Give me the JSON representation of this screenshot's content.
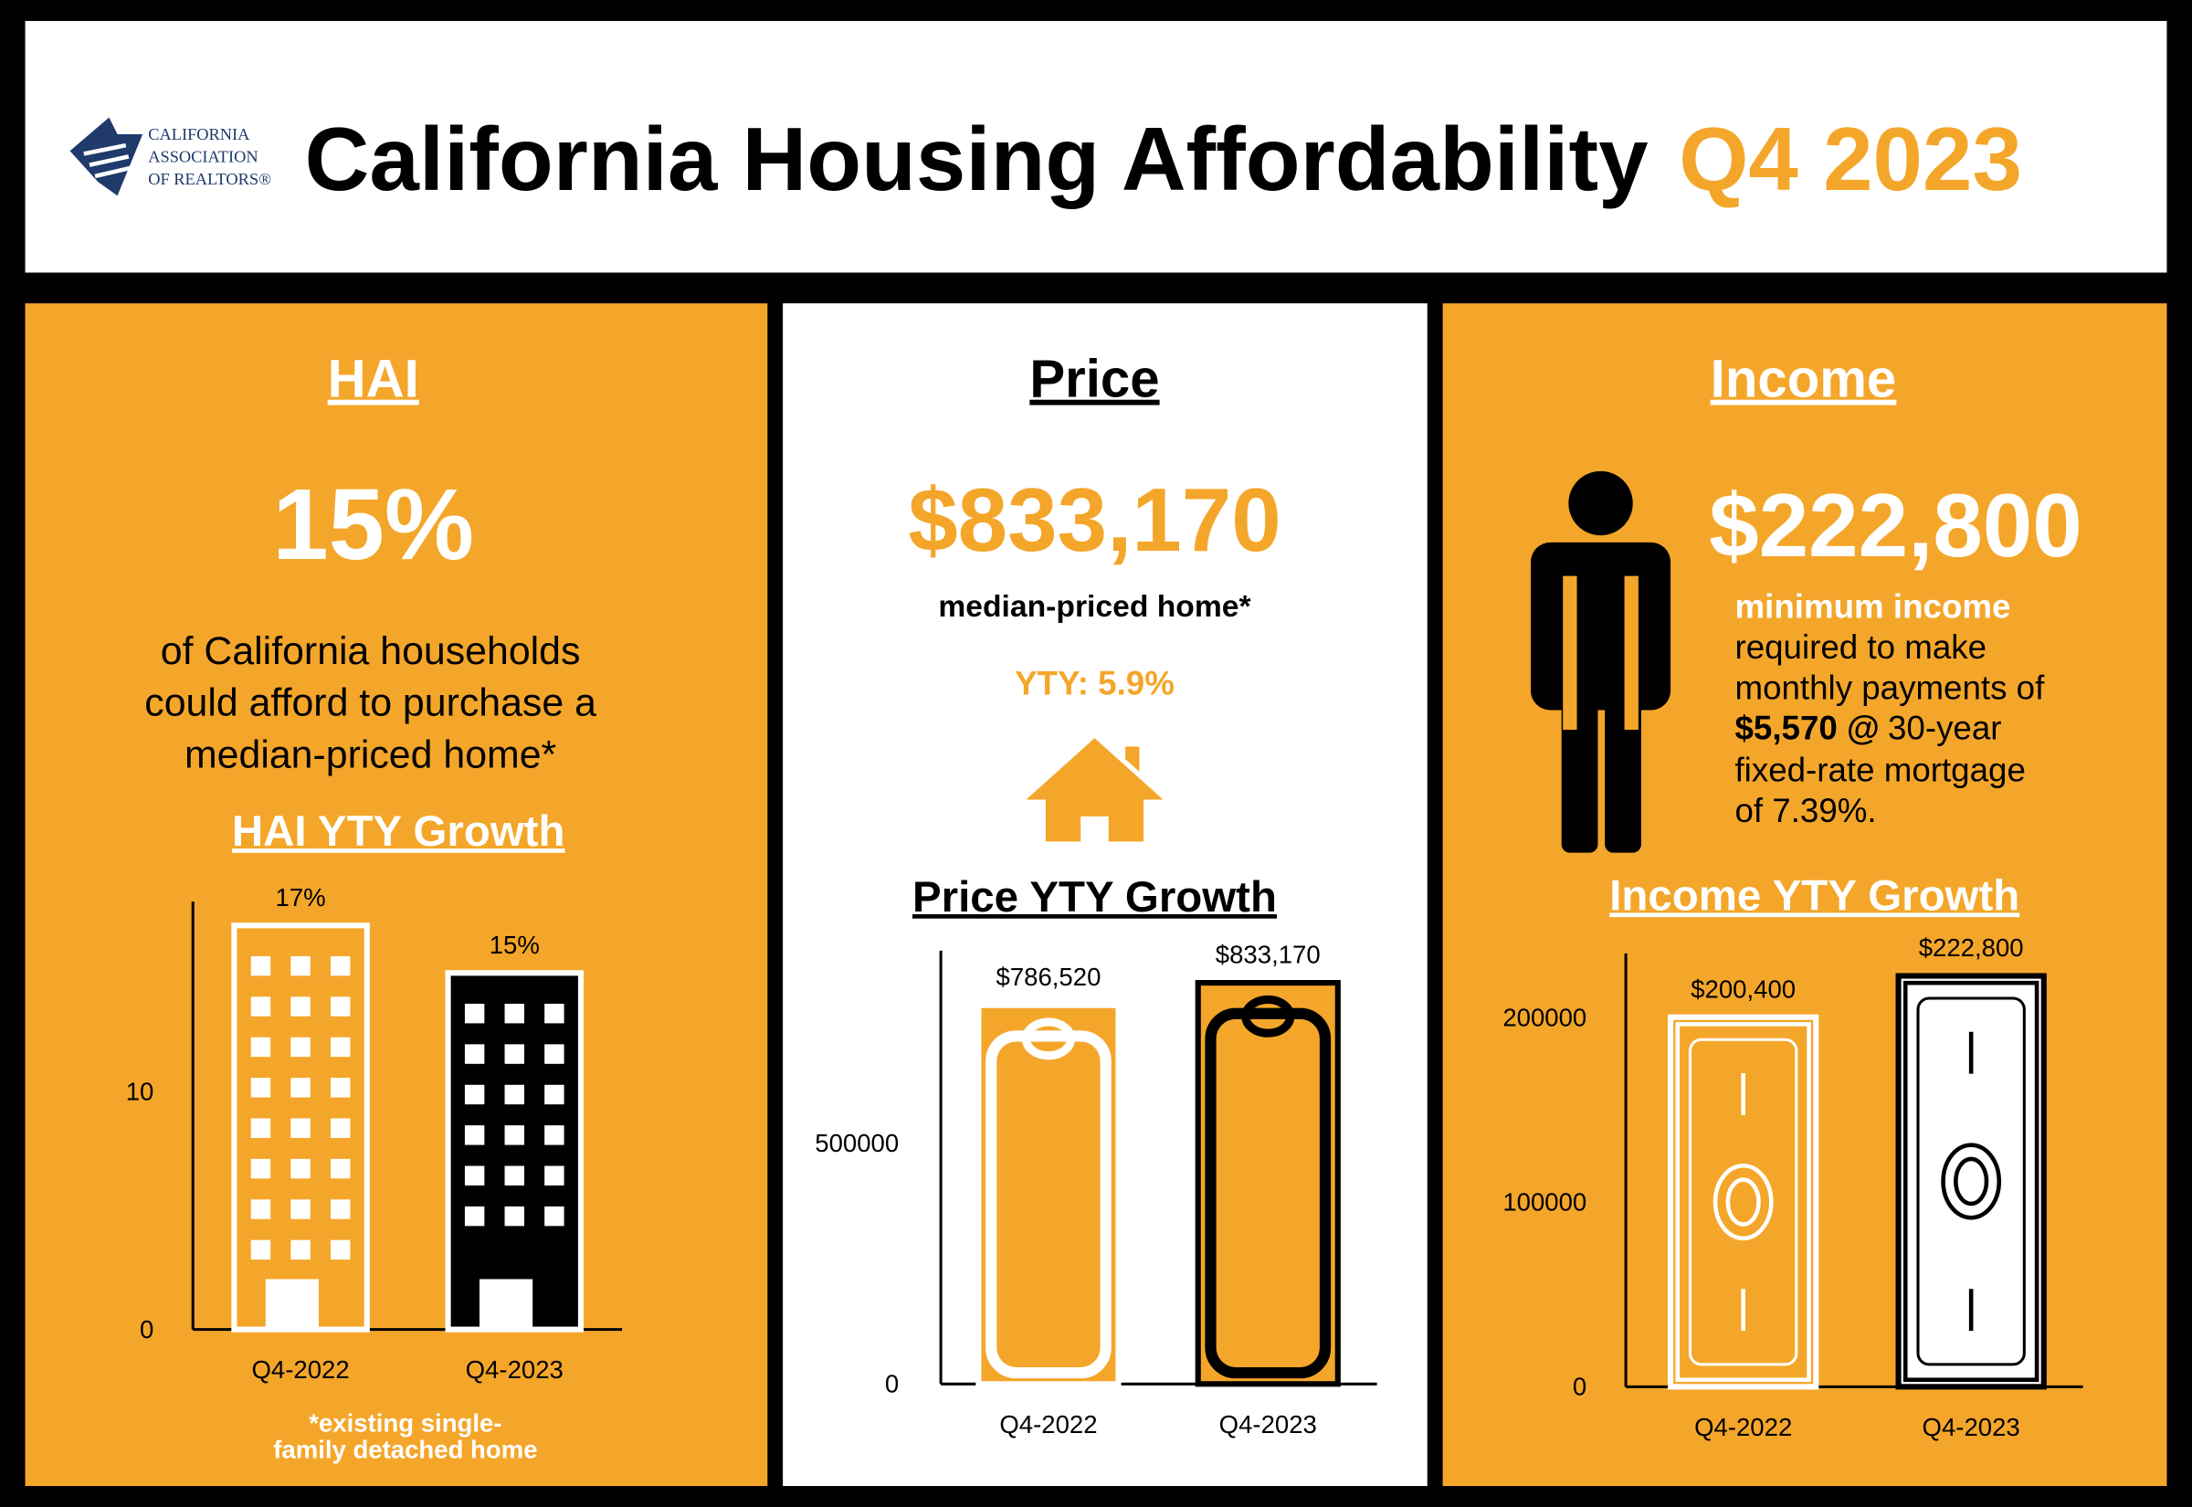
{
  "header": {
    "logo": [
      "CALIFORNIA",
      "ASSOCIATION",
      "OF REALTORS®"
    ],
    "title": "California Housing Affordability",
    "period": "Q4 2023"
  },
  "panels": {
    "hai": {
      "heading": "HAI",
      "big": "15%",
      "description": [
        "of California households",
        "could afford to purchase a",
        "median-priced home*"
      ],
      "footnote": [
        "*existing single-",
        "family detached home"
      ]
    },
    "price": {
      "heading": "Price",
      "big": "$833,170",
      "caption": "median-priced home*",
      "yty": "YTY: 5.9%"
    },
    "income": {
      "heading": "Income",
      "big": "$222,800",
      "description": [
        "minimum income",
        "required to make",
        "monthly payments of",
        [
          "$5,570 @",
          "30-year"
        ],
        "fixed-rate mortgage",
        "of 7.39%."
      ]
    }
  },
  "chart_data": [
    {
      "type": "bar",
      "icon": "building",
      "title": "HAI YTY Growth",
      "categories": [
        "Q4-2022",
        "Q4-2023"
      ],
      "values": [
        17,
        15
      ],
      "value_labels": [
        "17%",
        "15%"
      ],
      "colors": [
        "#f4a62a",
        "#000000"
      ],
      "detail_colors": [
        "#ffffff",
        "#ffffff"
      ],
      "ylim": [
        0,
        18
      ],
      "yticks": [
        0,
        10
      ]
    },
    {
      "type": "bar",
      "icon": "tag",
      "title": "Price YTY Growth",
      "categories": [
        "Q4-2022",
        "Q4-2023"
      ],
      "values": [
        786520,
        833170
      ],
      "value_labels": [
        "$786,520",
        "$833,170"
      ],
      "colors": [
        "#f4a62a",
        "#f4a62a"
      ],
      "detail_colors": [
        "#ffffff",
        "#000000"
      ],
      "ylim": [
        0,
        900000
      ],
      "yticks": [
        0,
        500000
      ]
    },
    {
      "type": "bar",
      "icon": "bill",
      "title": "Income YTY Growth",
      "categories": [
        "Q4-2022",
        "Q4-2023"
      ],
      "values": [
        200400,
        222800
      ],
      "value_labels": [
        "$200,400",
        "$222,800"
      ],
      "colors": [
        "#f4a62a",
        "#ffffff"
      ],
      "detail_colors": [
        "#ffffff",
        "#000000"
      ],
      "ylim": [
        0,
        235000
      ],
      "yticks": [
        0,
        100000,
        200000
      ]
    }
  ]
}
